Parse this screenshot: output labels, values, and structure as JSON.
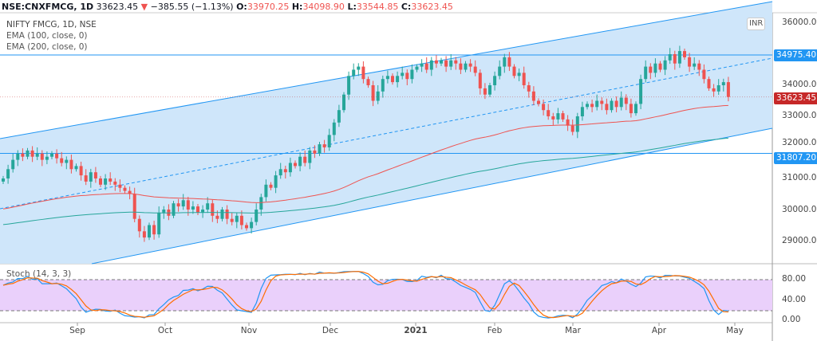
{
  "header": {
    "symbol": "NSE:CNXFMCG, 1D",
    "last": "33623.45",
    "change_icon": "triangle-down-icon",
    "change": "−385.55 (−1.13%)",
    "o_label": "O:",
    "o": "33970.25",
    "h_label": "H:",
    "h": "34098.90",
    "l_label": "L:",
    "l": "33544.85",
    "c_label": "C:",
    "c": "33623.45"
  },
  "legend": {
    "title": "NIFTY FMCG, 1D, NSE",
    "ema100": "EMA (100, close, 0)",
    "ema200": "EMA (200, close, 0)"
  },
  "stoch": {
    "label": "Stoch (14, 3, 3)",
    "ticks": [
      "80.00",
      "40.00",
      "0.00"
    ]
  },
  "price_axis": {
    "currency": "INR",
    "ticks": [
      "36000.00",
      "34000.00",
      "33000.00",
      "32000.00",
      "31000.00",
      "30000.00",
      "29000.00"
    ],
    "tags": {
      "upper_line": "34975.40",
      "last_price": "33623.45",
      "lower_line": "31807.20"
    }
  },
  "time_axis": [
    "Sep",
    "Oct",
    "Nov",
    "Dec",
    "2021",
    "Feb",
    "Mar",
    "Apr",
    "May"
  ],
  "colors": {
    "up": "#26a69a",
    "down": "#ef5350",
    "ema100": "#ef5350",
    "ema200": "#26a69a",
    "channel": "#2196f3",
    "channel_fill": "#cfe6fa",
    "stoch_k": "#2196f3",
    "stoch_d": "#ff6d00",
    "stoch_band": "#ead0fb",
    "last_tag": "#c62828"
  },
  "chart_data": {
    "type": "candlestick",
    "ylim": [
      28500,
      36100
    ],
    "closes": [
      31000,
      31300,
      31600,
      31800,
      31700,
      31900,
      31700,
      31800,
      31600,
      31700,
      31800,
      31650,
      31500,
      31600,
      31300,
      31400,
      31100,
      30900,
      31200,
      31000,
      30800,
      31000,
      30900,
      30800,
      30700,
      30600,
      30500,
      29700,
      29300,
      29100,
      29500,
      29200,
      29900,
      30000,
      29800,
      30200,
      30100,
      30300,
      30000,
      30100,
      29900,
      30000,
      30200,
      29800,
      29700,
      30000,
      29700,
      29600,
      29800,
      29500,
      29400,
      29600,
      30000,
      30400,
      30800,
      30700,
      31100,
      31300,
      31200,
      31500,
      31400,
      31700,
      31500,
      31900,
      31800,
      32100,
      32000,
      32400,
      32800,
      33200,
      33700,
      34300,
      34500,
      34600,
      34200,
      34000,
      33500,
      33800,
      34200,
      34300,
      34100,
      34300,
      34400,
      34200,
      34500,
      34600,
      34700,
      34500,
      34800,
      34700,
      34800,
      34600,
      34800,
      34700,
      34500,
      34700,
      34600,
      34400,
      33900,
      33700,
      34000,
      34300,
      34600,
      34900,
      34600,
      34300,
      34400,
      34000,
      33800,
      33500,
      33400,
      33200,
      33000,
      32900,
      33100,
      32900,
      32700,
      32500,
      33000,
      33300,
      33400,
      33300,
      33500,
      33400,
      33200,
      33500,
      33300,
      33600,
      33400,
      33100,
      33400,
      34200,
      34600,
      34400,
      34700,
      34500,
      34800,
      35000,
      34700,
      35100,
      34900,
      34600,
      34700,
      34500,
      34200,
      33900,
      33800,
      34000,
      34100,
      33623.45
    ],
    "hlines": [
      34975.4,
      31807.2
    ]
  }
}
